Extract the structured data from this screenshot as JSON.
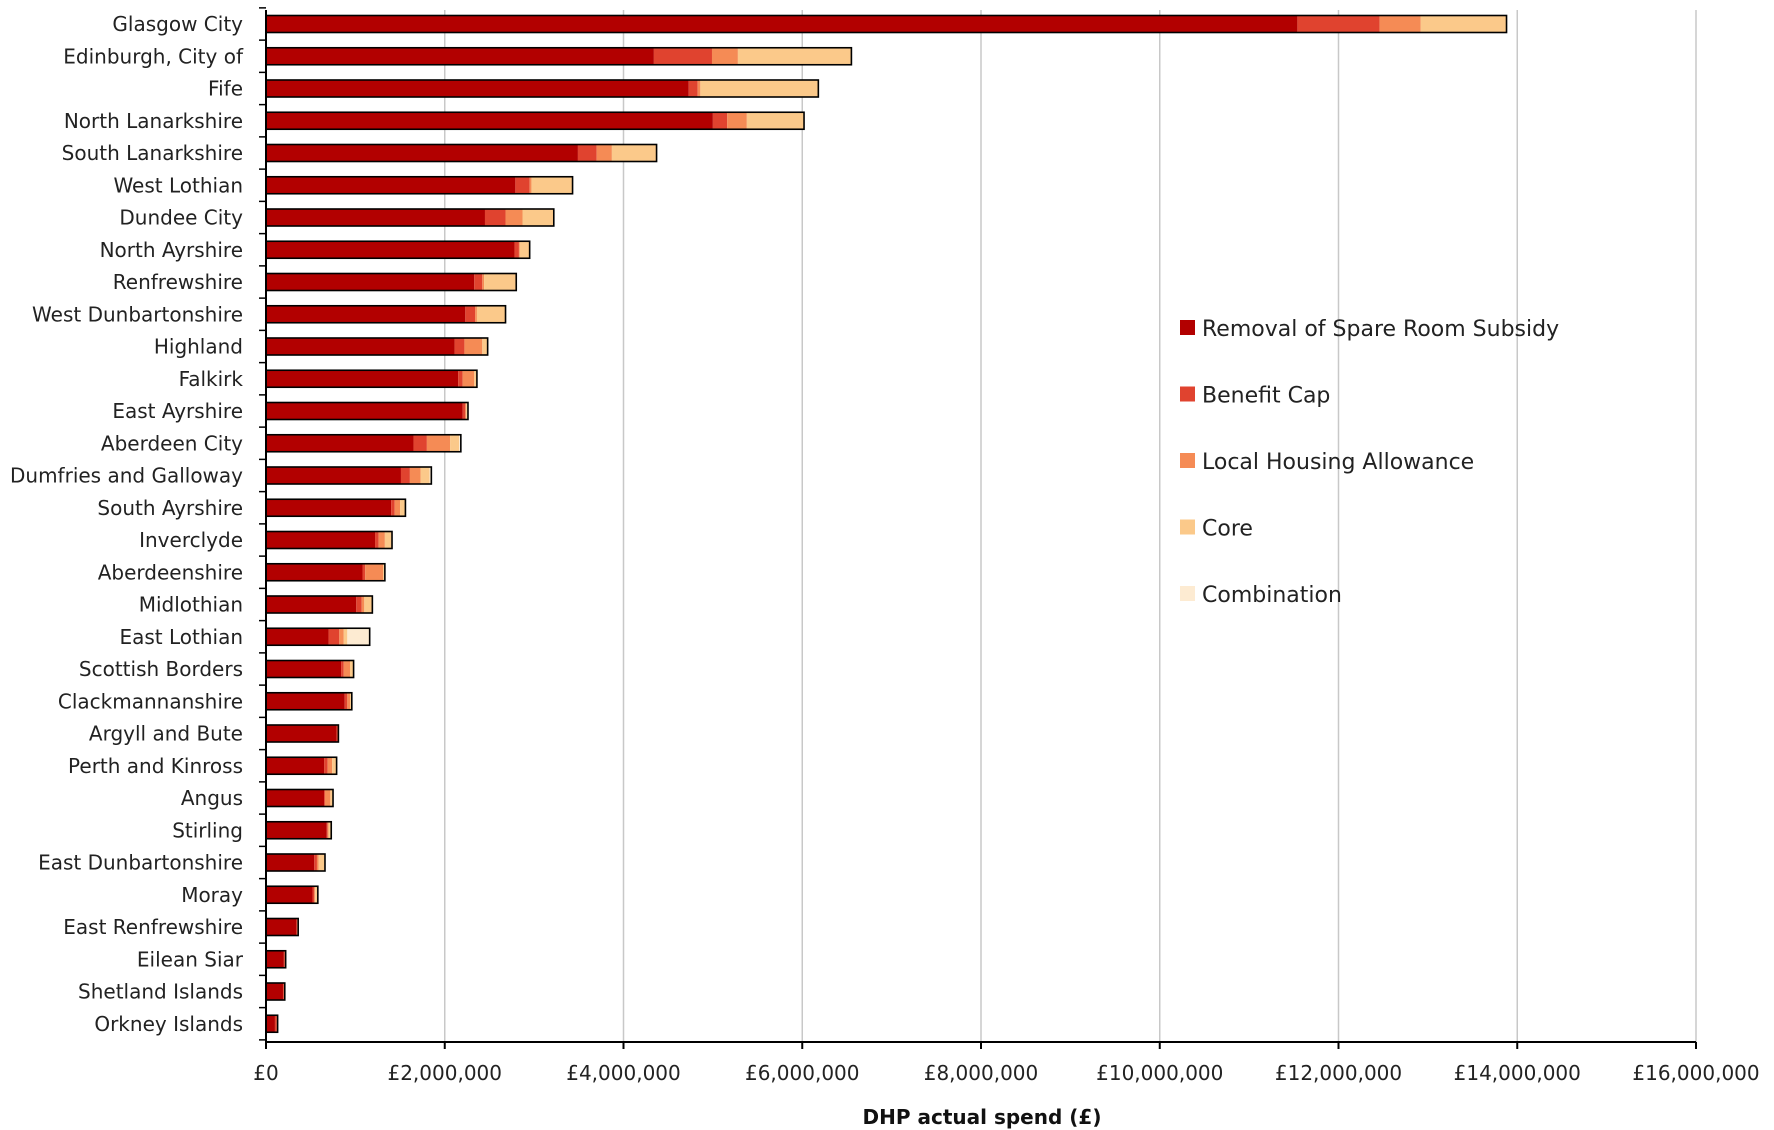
{
  "chart_data": {
    "type": "bar",
    "orientation": "horizontal",
    "stacked": true,
    "title": "",
    "xlabel": "DHP actual spend (£)",
    "ylabel": "",
    "xlim": [
      0,
      16000000
    ],
    "x_ticks": [
      0,
      2000000,
      4000000,
      6000000,
      8000000,
      10000000,
      12000000,
      14000000,
      16000000
    ],
    "x_tick_labels": [
      "£0",
      "£2,000,000",
      "£4,000,000",
      "£6,000,000",
      "£8,000,000",
      "£10,000,000",
      "£12,000,000",
      "£14,000,000",
      "£16,000,000"
    ],
    "grid": "vertical",
    "legend_position": "right",
    "categories": [
      "Glasgow City",
      "Edinburgh, City of",
      "Fife",
      "North Lanarkshire",
      "South Lanarkshire",
      "West Lothian",
      "Dundee City",
      "North Ayrshire",
      "Renfrewshire",
      "West Dunbartonshire",
      "Highland",
      "Falkirk",
      "East Ayrshire",
      "Aberdeen City",
      "Dumfries and Galloway",
      "South Ayrshire",
      "Inverclyde",
      "Aberdeenshire",
      "Midlothian",
      "East Lothian",
      "Scottish Borders",
      "Clackmannanshire",
      "Argyll and Bute",
      "Perth and Kinross",
      "Angus",
      "Stirling",
      "East Dunbartonshire",
      "Moray",
      "East Renfrewshire",
      "Eilean Siar",
      "Shetland Islands",
      "Orkney Islands"
    ],
    "series": [
      {
        "name": "Removal of Spare Room Subsidy",
        "color": "#B20000",
        "values": [
          11540000,
          4340000,
          4730000,
          5000000,
          3490000,
          2790000,
          2450000,
          2780000,
          2330000,
          2230000,
          2110000,
          2150000,
          2200000,
          1650000,
          1510000,
          1400000,
          1220000,
          1080000,
          1010000,
          700000,
          840000,
          880000,
          790000,
          650000,
          650000,
          680000,
          540000,
          520000,
          340000,
          200000,
          190000,
          100000
        ]
      },
      {
        "name": "Benefit Cap",
        "color": "#E0432F",
        "values": [
          920000,
          650000,
          100000,
          160000,
          210000,
          160000,
          230000,
          50000,
          90000,
          110000,
          110000,
          50000,
          30000,
          150000,
          100000,
          40000,
          40000,
          30000,
          60000,
          120000,
          30000,
          30000,
          10000,
          40000,
          10000,
          10000,
          30000,
          20000,
          10000,
          10000,
          10000,
          20000
        ]
      },
      {
        "name": "Local Housing Allowance",
        "color": "#F58B55",
        "values": [
          460000,
          290000,
          30000,
          220000,
          170000,
          20000,
          190000,
          10000,
          20000,
          20000,
          200000,
          130000,
          10000,
          260000,
          120000,
          60000,
          70000,
          200000,
          30000,
          50000,
          70000,
          30000,
          10000,
          50000,
          60000,
          10000,
          20000,
          10000,
          10000,
          10000,
          10000,
          10000
        ]
      },
      {
        "name": "Core",
        "color": "#FBC98A",
        "values": [
          960000,
          1270000,
          1320000,
          640000,
          500000,
          460000,
          350000,
          110000,
          360000,
          320000,
          60000,
          30000,
          20000,
          100000,
          100000,
          60000,
          80000,
          20000,
          90000,
          40000,
          40000,
          20000,
          0,
          50000,
          30000,
          30000,
          70000,
          30000,
          0,
          0,
          0,
          0
        ]
      },
      {
        "name": "Combination",
        "color": "#FDEBD2",
        "values": [
          0,
          0,
          0,
          0,
          0,
          0,
          0,
          0,
          0,
          0,
          0,
          0,
          0,
          20000,
          20000,
          0,
          0,
          0,
          0,
          250000,
          0,
          0,
          0,
          0,
          0,
          0,
          0,
          0,
          0,
          0,
          0,
          0
        ]
      }
    ]
  }
}
